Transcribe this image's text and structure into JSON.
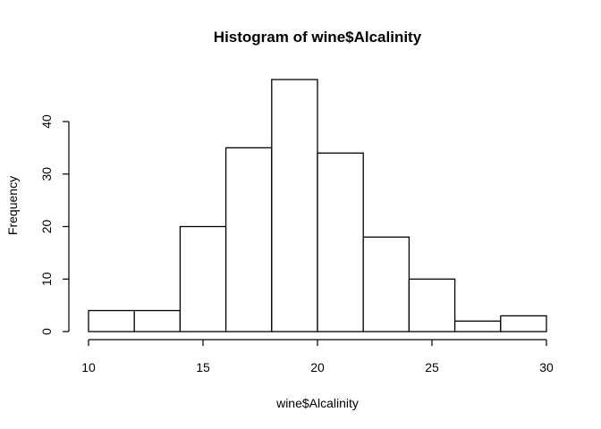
{
  "chart_data": {
    "type": "bar",
    "title": "Histogram of wine$Alcalinity",
    "xlabel": "wine$Alcalinity",
    "ylabel": "Frequency",
    "bins": [
      {
        "from": 10,
        "to": 12,
        "count": 4
      },
      {
        "from": 12,
        "to": 14,
        "count": 4
      },
      {
        "from": 14,
        "to": 16,
        "count": 20
      },
      {
        "from": 16,
        "to": 18,
        "count": 35
      },
      {
        "from": 18,
        "to": 20,
        "count": 48
      },
      {
        "from": 20,
        "to": 22,
        "count": 34
      },
      {
        "from": 22,
        "to": 24,
        "count": 18
      },
      {
        "from": 24,
        "to": 26,
        "count": 10
      },
      {
        "from": 26,
        "to": 28,
        "count": 2
      },
      {
        "from": 28,
        "to": 30,
        "count": 3
      }
    ],
    "xlim": [
      10,
      30
    ],
    "ylim": [
      0,
      48
    ],
    "xticks": [
      10,
      15,
      20,
      25,
      30
    ],
    "yticks": [
      0,
      10,
      20,
      30,
      40
    ],
    "xtick_labels": [
      "10",
      "15",
      "20",
      "25",
      "30"
    ],
    "ytick_labels": [
      "0",
      "10",
      "20",
      "30",
      "40"
    ],
    "grid": false,
    "colors": {
      "bar_fill": "#ffffff",
      "bar_stroke": "#000000"
    }
  }
}
